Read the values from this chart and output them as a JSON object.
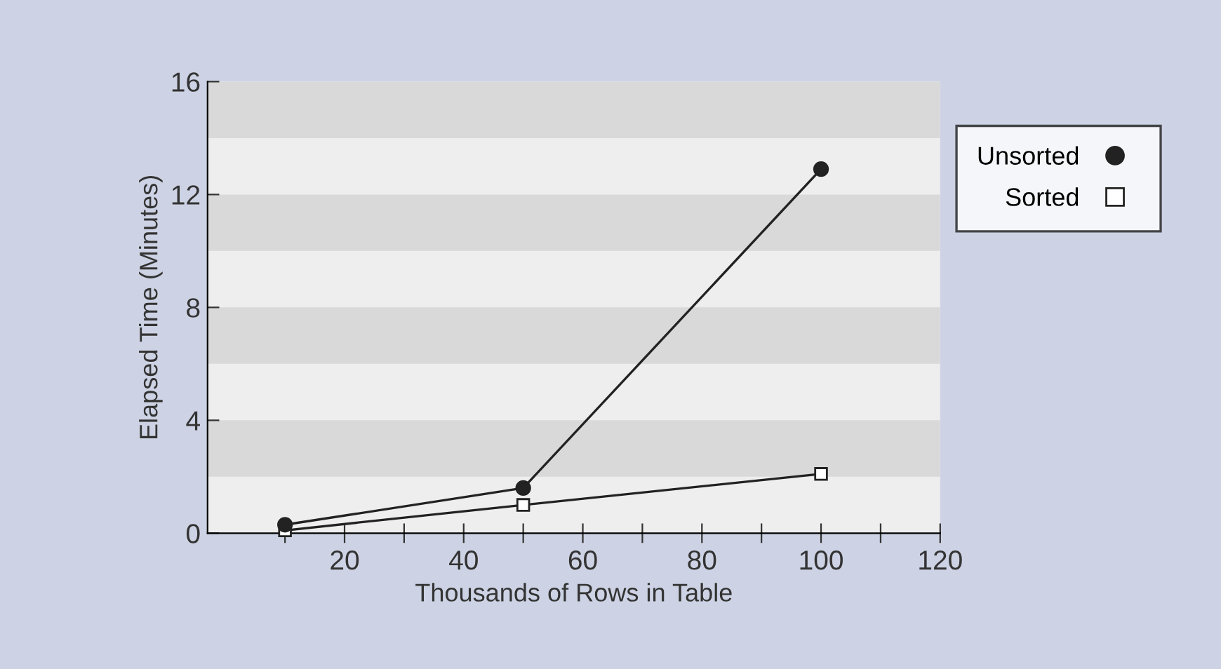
{
  "chart_data": {
    "type": "line",
    "xlabel": "Thousands of Rows in Table",
    "ylabel": "Elapsed Time (Minutes)",
    "x": [
      10,
      50,
      100
    ],
    "series": [
      {
        "name": "Unsorted",
        "color": "#222222",
        "values": [
          0.3,
          1.6,
          12.9
        ],
        "marker": "circle"
      },
      {
        "name": "Sorted",
        "color": "#222222",
        "values": [
          0.1,
          1.0,
          2.1
        ],
        "marker": "square"
      }
    ],
    "xlim": [
      -3,
      120
    ],
    "ylim": [
      0,
      16
    ],
    "xticks": [
      {
        "value": 10,
        "label": null
      },
      20,
      {
        "value": 30,
        "label": null
      },
      40,
      {
        "value": 50,
        "label": null
      },
      60,
      {
        "value": 70,
        "label": null
      },
      80,
      {
        "value": 90,
        "label": null
      },
      100,
      {
        "value": 110,
        "label": null
      },
      120
    ],
    "yticks": [
      0,
      4,
      8,
      12,
      16
    ],
    "bands": [
      {
        "axis": "y",
        "from": 2,
        "to": 4,
        "color": "#d9d9d9"
      },
      {
        "axis": "y",
        "from": 6,
        "to": 8,
        "color": "#d9d9d9"
      },
      {
        "axis": "y",
        "from": 10,
        "to": 12,
        "color": "#d9d9d9"
      },
      {
        "axis": "y",
        "from": 14,
        "to": 16,
        "color": "#d9d9d9"
      }
    ],
    "grid": false,
    "legend": "right",
    "line_style": "solid"
  }
}
